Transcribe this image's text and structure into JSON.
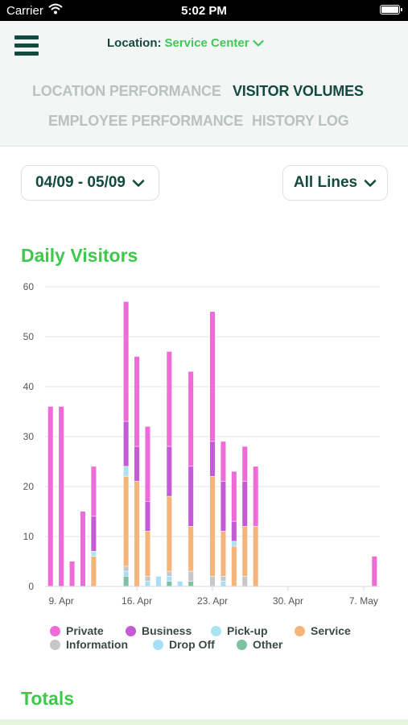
{
  "status_bar": {
    "carrier": "Carrier",
    "time": "5:02 PM"
  },
  "header": {
    "location_label": "Location:",
    "location_value": "Service Center",
    "tabs": [
      "LOCATION PERFORMANCE",
      "VISITOR VOLUMES",
      "EMPLOYEE PERFORMANCE",
      "HISTORY LOG"
    ],
    "active_tab": "VISITOR VOLUMES"
  },
  "filters": {
    "date_range": "04/09 - 05/09",
    "lines": "All Lines"
  },
  "sections": {
    "daily_visitors": "Daily Visitors",
    "totals": "Totals"
  },
  "colors": {
    "accent_green": "#3ec94c",
    "dark_green": "#124a3e",
    "Private": "#ee6bd8",
    "Business": "#c45ad6",
    "Pick-up": "#a8e4f2",
    "Service": "#f5b57a",
    "Information": "#c7c7c7",
    "Drop Off": "#a8def7",
    "Other": "#7fc1a3"
  },
  "chart_data": {
    "type": "bar",
    "stacked": true,
    "ylim": [
      0,
      60
    ],
    "yticks": [
      0,
      10,
      20,
      30,
      40,
      50,
      60
    ],
    "xticks": [
      {
        "day": 9,
        "label": "9. Apr"
      },
      {
        "day": 16,
        "label": "16. Apr"
      },
      {
        "day": 23,
        "label": "23. Apr"
      },
      {
        "day": 30,
        "label": "30. Apr"
      },
      {
        "day": 37,
        "label": "7. May"
      }
    ],
    "x_day_range": [
      8,
      39
    ],
    "legend_position": "bottom",
    "series": [
      {
        "name": "Other",
        "values": [
          0,
          0,
          0,
          0,
          0,
          0,
          0,
          2,
          0,
          0,
          0,
          1,
          0,
          1,
          0,
          0,
          0,
          0,
          0,
          0,
          0,
          0,
          0,
          0,
          0,
          0,
          0,
          0,
          0,
          0,
          0
        ]
      },
      {
        "name": "Drop Off",
        "values": [
          0,
          0,
          0,
          0,
          0,
          0,
          0,
          1,
          0,
          1,
          2,
          1,
          1,
          0,
          0,
          0,
          1,
          0,
          0,
          0,
          0,
          0,
          0,
          0,
          0,
          0,
          0,
          0,
          0,
          0,
          0
        ]
      },
      {
        "name": "Information",
        "values": [
          0,
          0,
          0,
          0,
          0,
          0,
          0,
          1,
          0,
          1,
          0,
          1,
          0,
          2,
          0,
          2,
          1,
          0,
          2,
          0,
          0,
          0,
          0,
          0,
          0,
          0,
          0,
          0,
          0,
          0,
          0
        ]
      },
      {
        "name": "Service",
        "values": [
          0,
          0,
          0,
          0,
          6,
          0,
          0,
          18,
          21,
          9,
          0,
          15,
          0,
          9,
          0,
          20,
          9,
          8,
          10,
          12,
          0,
          0,
          0,
          0,
          0,
          0,
          0,
          0,
          0,
          0,
          0
        ]
      },
      {
        "name": "Pick-up",
        "values": [
          0,
          0,
          0,
          0,
          1,
          0,
          0,
          2,
          0,
          0,
          0,
          0,
          0,
          0,
          0,
          0,
          0,
          1,
          0,
          0,
          0,
          0,
          0,
          0,
          0,
          0,
          0,
          0,
          0,
          0,
          0
        ]
      },
      {
        "name": "Business",
        "values": [
          0,
          0,
          0,
          0,
          7,
          0,
          0,
          9,
          7,
          6,
          0,
          10,
          0,
          12,
          0,
          7,
          10,
          4,
          9,
          0,
          0,
          0,
          0,
          0,
          0,
          0,
          0,
          0,
          0,
          0,
          0
        ]
      },
      {
        "name": "Private",
        "values": [
          36,
          36,
          5,
          15,
          10,
          0,
          0,
          24,
          18,
          15,
          0,
          19,
          0,
          19,
          0,
          26,
          8,
          10,
          7,
          12,
          0,
          0,
          0,
          0,
          0,
          0,
          0,
          0,
          0,
          0,
          6
        ]
      }
    ],
    "legend_order": [
      "Private",
      "Business",
      "Pick-up",
      "Service",
      "Information",
      "Drop Off",
      "Other"
    ]
  }
}
